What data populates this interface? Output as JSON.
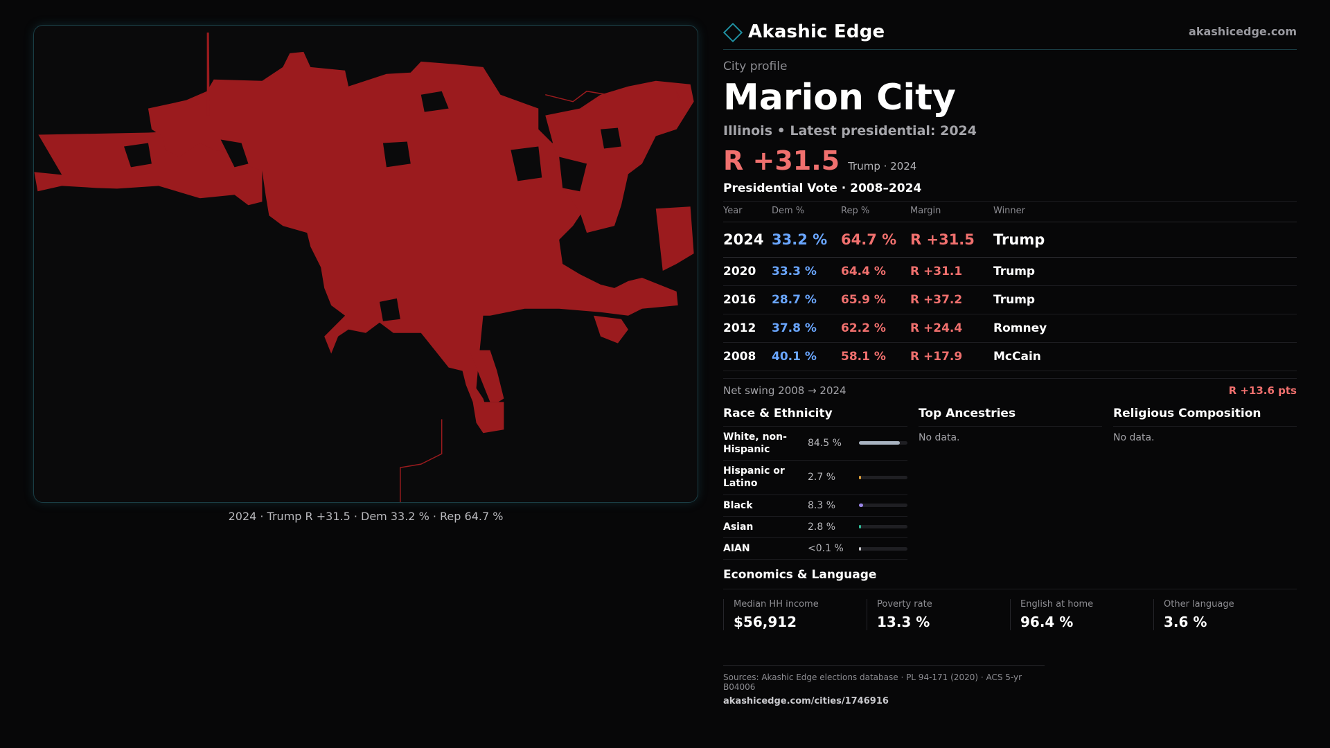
{
  "brand": {
    "name": "Akashic Edge",
    "url": "akashicedge.com"
  },
  "profile": {
    "kicker": "City profile",
    "city": "Marion City",
    "subtitle": "Illinois • Latest presidential: 2024",
    "headline_margin": "R +31.5",
    "headline_note": "Trump · 2024"
  },
  "map": {
    "caption": "2024 · Trump R +31.5 · Dem 33.2 % · Rep 64.7 %",
    "fill_color": "#9b1b1e"
  },
  "presidential": {
    "title": "Presidential Vote · 2008–2024",
    "headers": {
      "year": "Year",
      "dem": "Dem %",
      "rep": "Rep %",
      "margin": "Margin",
      "winner": "Winner"
    },
    "rows": [
      {
        "year": "2024",
        "dem": "33.2 %",
        "rep": "64.7 %",
        "margin": "R +31.5",
        "winner": "Trump"
      },
      {
        "year": "2020",
        "dem": "33.3 %",
        "rep": "64.4 %",
        "margin": "R +31.1",
        "winner": "Trump"
      },
      {
        "year": "2016",
        "dem": "28.7 %",
        "rep": "65.9 %",
        "margin": "R +37.2",
        "winner": "Trump"
      },
      {
        "year": "2012",
        "dem": "37.8 %",
        "rep": "62.2 %",
        "margin": "R +24.4",
        "winner": "Romney"
      },
      {
        "year": "2008",
        "dem": "40.1 %",
        "rep": "58.1 %",
        "margin": "R +17.9",
        "winner": "McCain"
      }
    ],
    "swing_label": "Net swing 2008 → 2024",
    "swing_value": "R +13.6 pts"
  },
  "race": {
    "title": "Race & Ethnicity",
    "rows": [
      {
        "label": "White, non-Hispanic",
        "pct": "84.5 %",
        "value": 84.5,
        "color": "#a9b4c2"
      },
      {
        "label": "Hispanic or Latino",
        "pct": "2.7 %",
        "value": 2.7,
        "color": "#e0a23a"
      },
      {
        "label": "Black",
        "pct": "8.3 %",
        "value": 8.3,
        "color": "#9b86e8"
      },
      {
        "label": "Asian",
        "pct": "2.8 %",
        "value": 2.8,
        "color": "#2fbf9a"
      },
      {
        "label": "AIAN",
        "pct": "<0.1 %",
        "value": 0.05,
        "color": "#c9c9cd"
      }
    ]
  },
  "ancestries": {
    "title": "Top Ancestries",
    "empty": "No data."
  },
  "religion": {
    "title": "Religious Composition",
    "empty": "No data."
  },
  "economics": {
    "title": "Economics & Language",
    "cards": [
      {
        "label": "Median HH income",
        "value": "$56,912"
      },
      {
        "label": "Poverty rate",
        "value": "13.3 %"
      },
      {
        "label": "English at home",
        "value": "96.4 %"
      },
      {
        "label": "Other language",
        "value": "3.6 %"
      }
    ]
  },
  "sources": {
    "line": "Sources: Akashic Edge elections database · PL 94-171 (2020) · ACS 5-yr B04006",
    "url": "akashicedge.com/cities/1746916"
  }
}
